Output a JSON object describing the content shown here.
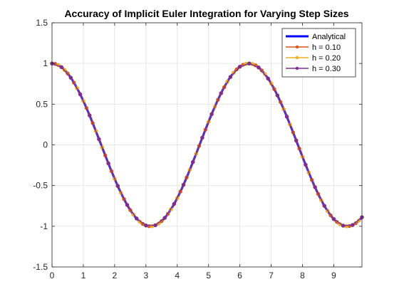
{
  "chart_data": {
    "type": "line",
    "title": "Accuracy of Implicit Euler Integration for Varying Step Sizes",
    "xlabel": "",
    "ylabel": "",
    "xlim": [
      0,
      9.9
    ],
    "ylim": [
      -1.5,
      1.5
    ],
    "xticks": [
      0,
      1,
      2,
      3,
      4,
      5,
      6,
      7,
      8,
      9
    ],
    "yticks": [
      -1.5,
      -1,
      -0.5,
      0,
      0.5,
      1,
      1.5
    ],
    "xtick_labels": [
      "0",
      "1",
      "2",
      "3",
      "4",
      "5",
      "6",
      "7",
      "8",
      "9"
    ],
    "ytick_labels": [
      "-1.5",
      "-1",
      "-0.5",
      "0",
      "0.5",
      "1",
      "1.5"
    ],
    "grid": true,
    "legend_position": "top-right",
    "series": [
      {
        "name": "Analytical",
        "color": "#0000ff",
        "marker": "none",
        "function": "cos(x)",
        "x_start": 0,
        "x_end": 9.9,
        "step": 0.05
      },
      {
        "name": "h = 0.10",
        "color": "#d95319",
        "marker": "circle",
        "function": "cos(x)",
        "x_start": 0,
        "x_end": 9.9,
        "step": 0.1
      },
      {
        "name": "h = 0.20",
        "color": "#edb120",
        "marker": "circle",
        "function": "cos(x)",
        "x_start": 0,
        "x_end": 9.8,
        "step": 0.2
      },
      {
        "name": "h = 0.30",
        "color": "#7e2f8e",
        "marker": "circle",
        "function": "cos(x)",
        "x_start": 0,
        "x_end": 9.9,
        "step": 0.3
      }
    ]
  }
}
